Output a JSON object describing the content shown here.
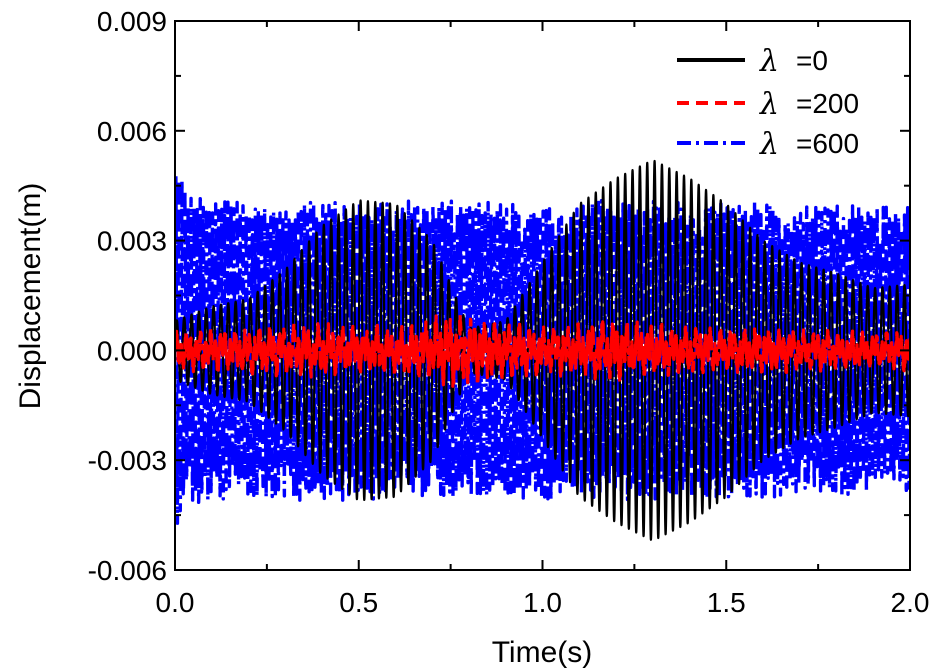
{
  "chart_data": {
    "type": "line",
    "title": "",
    "xlabel": "Time(s)",
    "ylabel": "Displacement(m)",
    "xlim": [
      0.0,
      2.0
    ],
    "ylim": [
      -0.006,
      0.009
    ],
    "x_ticks": [
      0.0,
      0.5,
      1.0,
      1.5,
      2.0
    ],
    "x_tick_labels": [
      "0.0",
      "0.5",
      "1.0",
      "1.5",
      "2.0"
    ],
    "y_ticks": [
      -0.006,
      -0.003,
      0.0,
      0.003,
      0.006,
      0.009
    ],
    "y_tick_labels": [
      "-0.006",
      "-0.003",
      "0.000",
      "0.003",
      "0.006",
      "0.009"
    ],
    "grid": false,
    "legend_position": "top-right",
    "legend_symbol": "λ",
    "series": [
      {
        "name": "=0",
        "color": "#000000",
        "style": "solid",
        "frequency_hz": 50,
        "envelope": {
          "t": [
            0.0,
            0.1,
            0.2,
            0.3,
            0.4,
            0.5,
            0.6,
            0.7,
            0.8,
            0.9,
            1.0,
            1.1,
            1.2,
            1.3,
            1.4,
            1.5,
            1.6,
            1.7,
            1.8,
            1.9,
            2.0
          ],
          "amplitude": [
            0.0008,
            0.0012,
            0.0014,
            0.0022,
            0.0034,
            0.0041,
            0.004,
            0.003,
            0.0006,
            0.0008,
            0.0024,
            0.004,
            0.0047,
            0.0052,
            0.0047,
            0.004,
            0.003,
            0.0024,
            0.0021,
            0.0017,
            0.0018
          ]
        }
      },
      {
        "name": "=200",
        "color": "#ff0000",
        "style": "dash",
        "frequency_hz": 75,
        "envelope": {
          "t": [
            0.0,
            0.2,
            0.4,
            0.6,
            0.78,
            0.8,
            1.0,
            1.2,
            1.4,
            1.6,
            1.8,
            2.0
          ],
          "amplitude": [
            0.0005,
            0.0006,
            0.0007,
            0.0006,
            0.001,
            0.0009,
            0.0006,
            0.0008,
            0.0006,
            0.0006,
            0.0005,
            0.0005
          ]
        }
      },
      {
        "name": "=600",
        "color": "#0000ff",
        "style": "dashdot",
        "frequency_hz": 120,
        "envelope": {
          "t": [
            0.0,
            0.01,
            0.03,
            0.2,
            0.5,
            0.8,
            1.0,
            1.2,
            1.5,
            1.8,
            2.0
          ],
          "amplitude": [
            0.005,
            0.0052,
            0.0043,
            0.0041,
            0.0041,
            0.0041,
            0.0041,
            0.0041,
            0.0041,
            0.004,
            0.004
          ]
        }
      }
    ]
  }
}
